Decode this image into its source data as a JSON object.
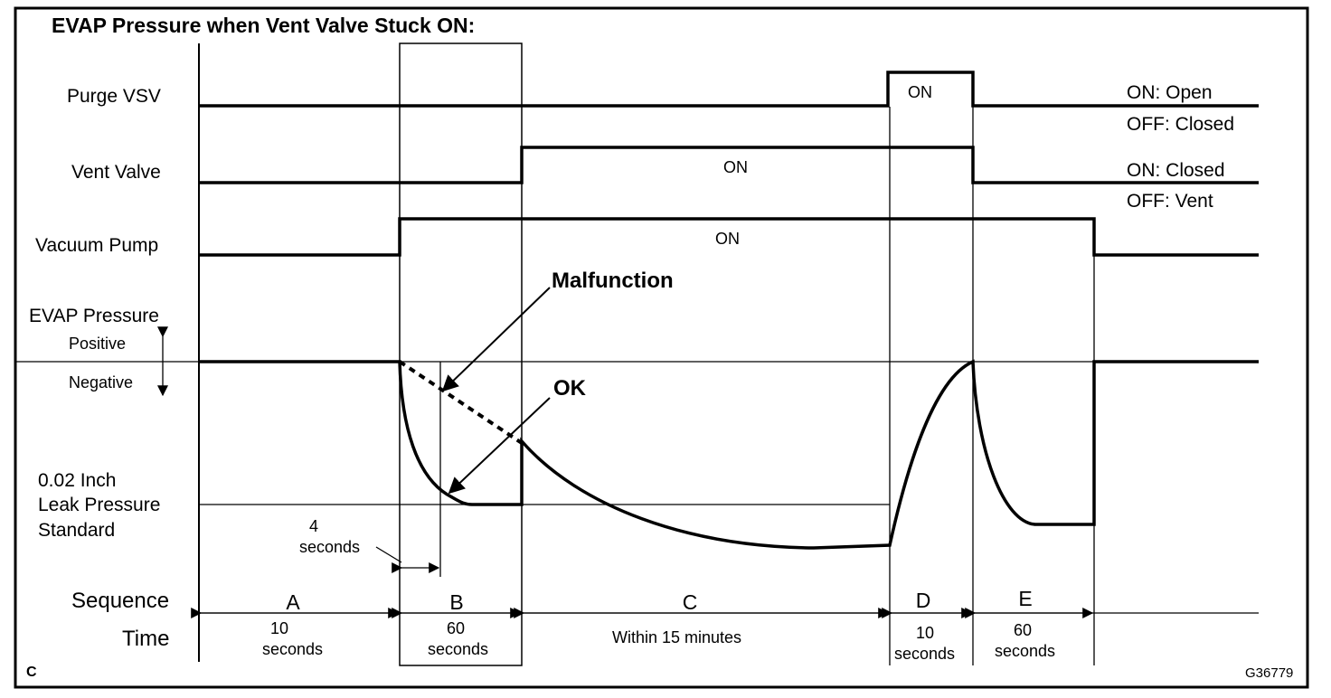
{
  "title": "EVAP Pressure when Vent Valve Stuck ON:",
  "signals": {
    "purge_vsv": {
      "label": "Purge VSV",
      "on_text": "ON",
      "legend_on": "ON: Open",
      "legend_off": "OFF: Closed"
    },
    "vent_valve": {
      "label": "Vent Valve",
      "on_text": "ON",
      "legend_on": "ON: Closed",
      "legend_off": "OFF: Vent"
    },
    "vacuum_pump": {
      "label": "Vacuum Pump",
      "on_text": "ON"
    }
  },
  "evap": {
    "label": "EVAP Pressure",
    "positive": "Positive",
    "negative": "Negative",
    "standard_line1": "0.02 Inch",
    "standard_line2": "Leak Pressure",
    "standard_line3": "Standard"
  },
  "annotations": {
    "malfunction": "Malfunction",
    "ok": "OK",
    "four_seconds_line1": "4",
    "four_seconds_line2": "seconds"
  },
  "sequence": {
    "row_label": "Sequence",
    "time_label": "Time",
    "steps": [
      {
        "letter": "A",
        "time1": "10",
        "time2": "seconds"
      },
      {
        "letter": "B",
        "time1": "60",
        "time2": "seconds"
      },
      {
        "letter": "C",
        "time1": "Within 15 minutes",
        "time2": ""
      },
      {
        "letter": "D",
        "time1": "10",
        "time2": "seconds"
      },
      {
        "letter": "E",
        "time1": "60",
        "time2": "seconds"
      }
    ]
  },
  "corner_label": "C",
  "figure_id": "G36779"
}
